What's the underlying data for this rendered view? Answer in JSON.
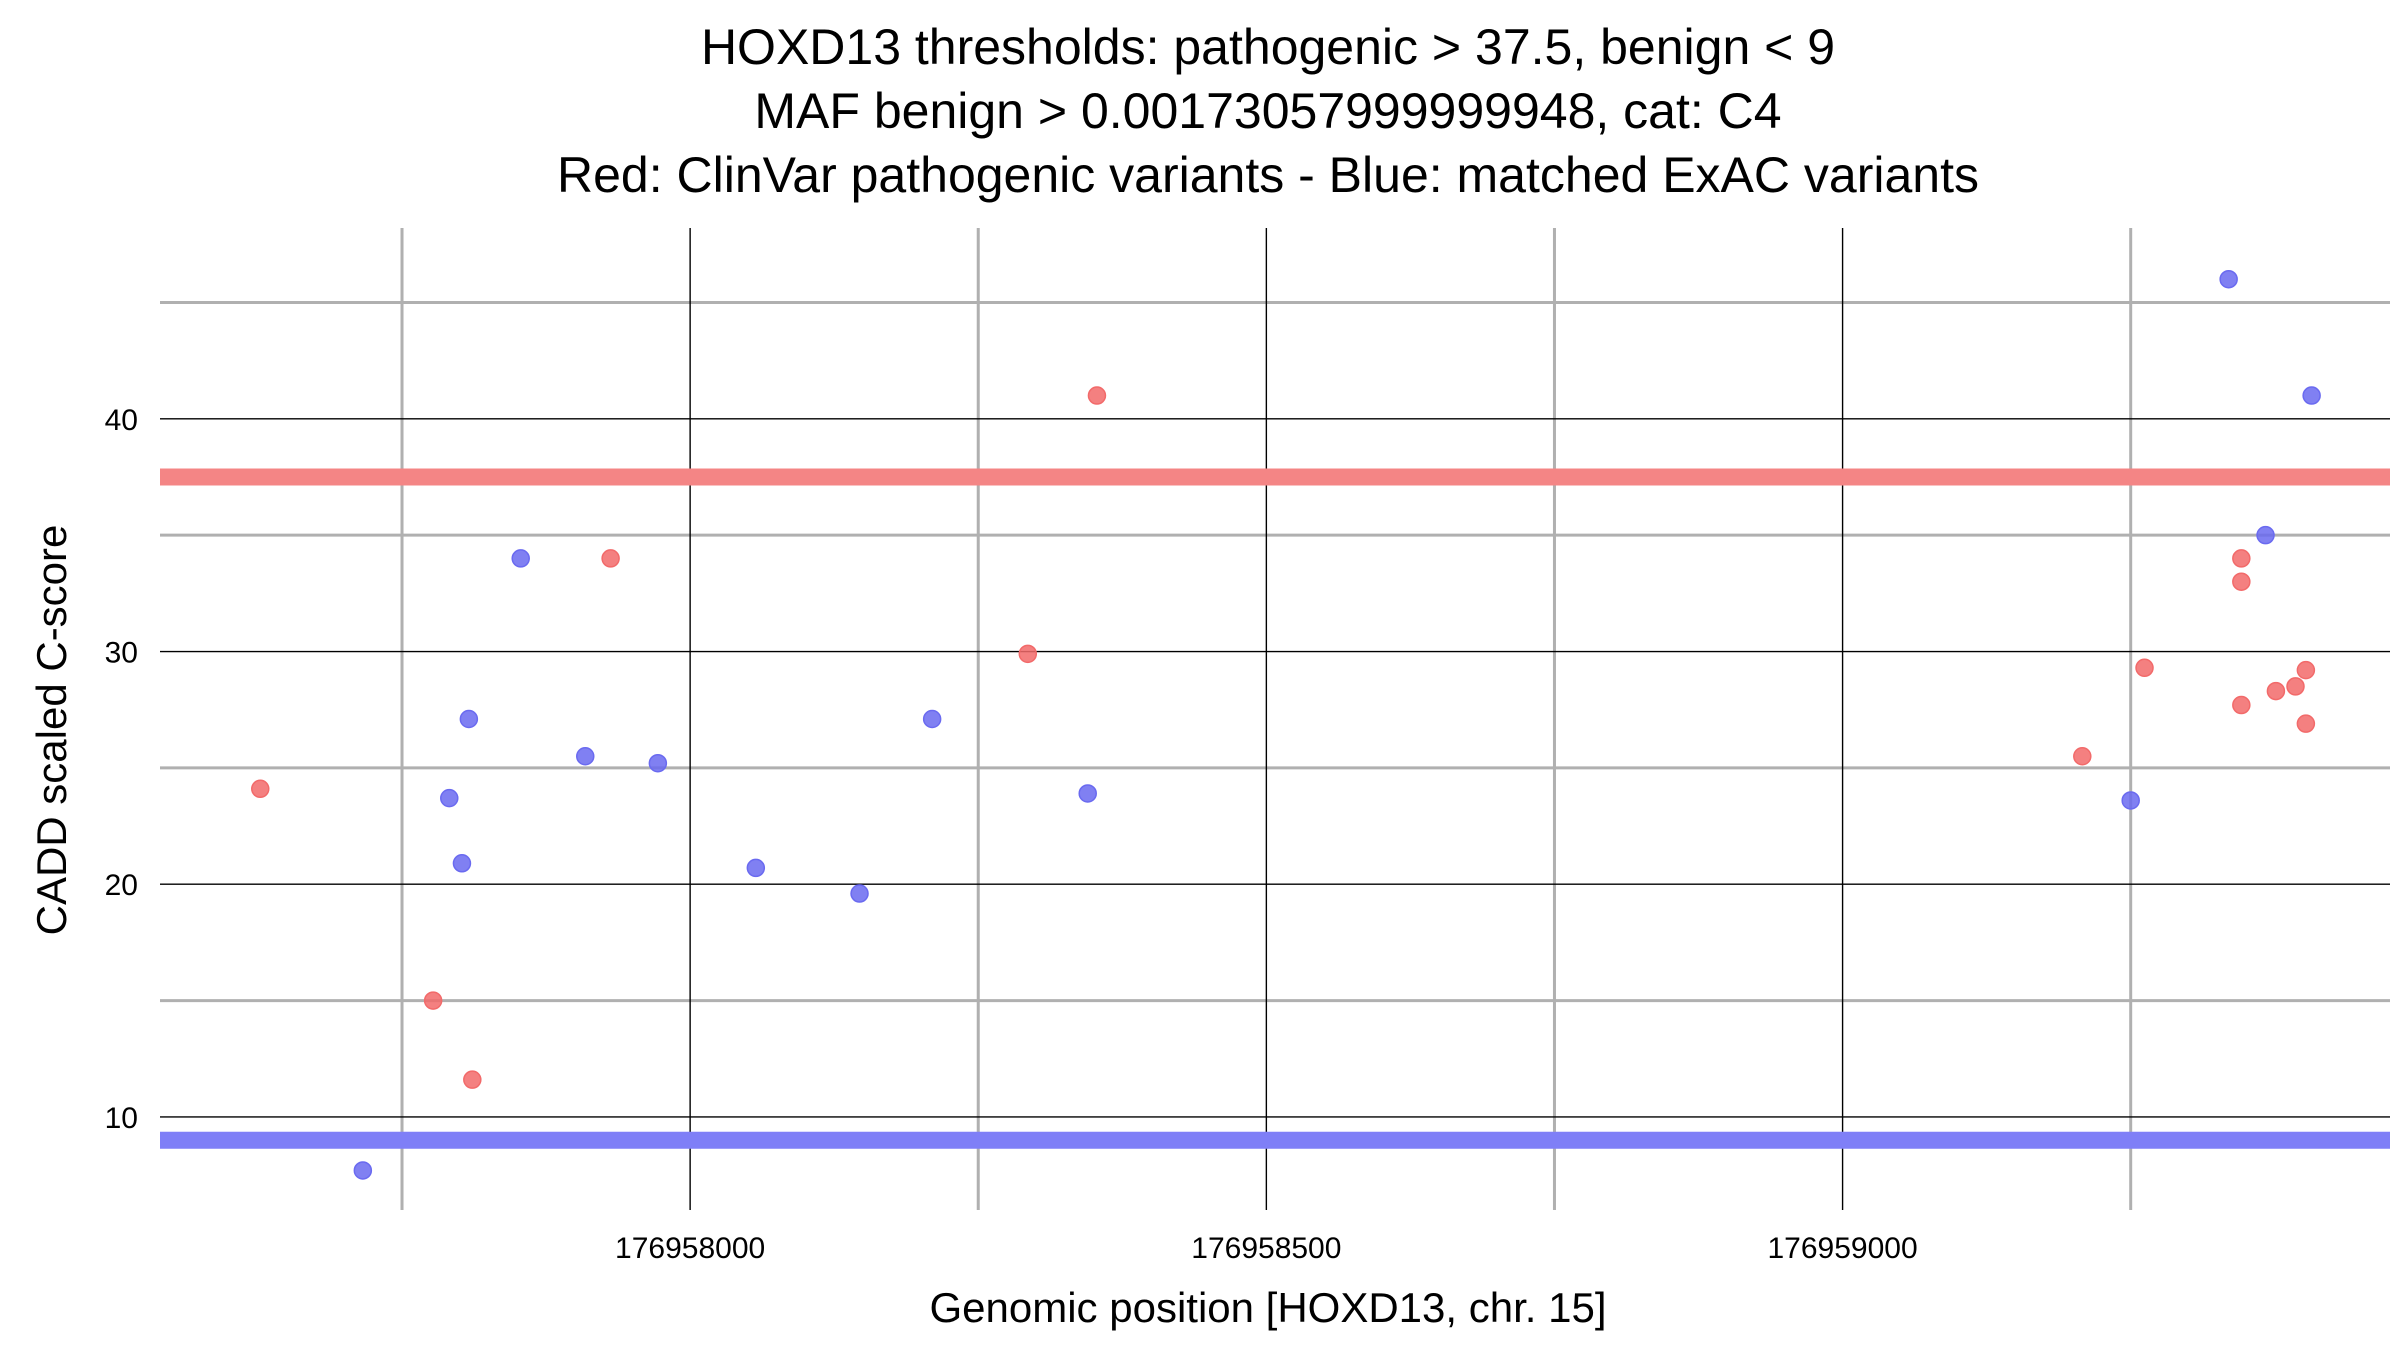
{
  "chart_data": {
    "type": "scatter",
    "title": [
      "HOXD13 thresholds: pathogenic > 37.5, benign < 9",
      "MAF benign > 0.00173057999999948, cat: C4",
      "Red: ClinVar pathogenic variants - Blue: matched ExAC variants"
    ],
    "xlabel": "Genomic position [HOXD13, chr. 15]",
    "ylabel": "CADD scaled C-score",
    "xlim": [
      176957540,
      176959475
    ],
    "ylim": [
      6,
      48.2
    ],
    "x_major_ticks": [
      176958000,
      176958500,
      176959000
    ],
    "x_major_tick_labels": [
      "176958000",
      "176958500",
      "176959000"
    ],
    "x_minor_ticks": [
      176957750,
      176958250,
      176958750,
      176959250
    ],
    "y_major_ticks": [
      10,
      20,
      30,
      40
    ],
    "y_major_tick_labels": [
      "10",
      "20",
      "30",
      "40"
    ],
    "y_minor_ticks": [
      15,
      25,
      35,
      45
    ],
    "grid": true,
    "thresholds": [
      {
        "name": "pathogenic",
        "y": 37.5,
        "color": "#f48585"
      },
      {
        "name": "benign",
        "y": 9,
        "color": "#7f7ff7"
      }
    ],
    "series": [
      {
        "color": "#f26a6a",
        "points": [
          {
            "x": 176957627,
            "y": 24.1
          },
          {
            "x": 176957777,
            "y": 15.0
          },
          {
            "x": 176957811,
            "y": 11.6
          },
          {
            "x": 176957931,
            "y": 34.0
          },
          {
            "x": 176958293,
            "y": 29.9
          },
          {
            "x": 176958353,
            "y": 41.0
          },
          {
            "x": 176959208,
            "y": 25.5
          },
          {
            "x": 176959262,
            "y": 29.3
          },
          {
            "x": 176959346,
            "y": 34.0
          },
          {
            "x": 176959346,
            "y": 33.0
          },
          {
            "x": 176959346,
            "y": 27.7
          },
          {
            "x": 176959376,
            "y": 28.3
          },
          {
            "x": 176959393,
            "y": 28.5
          },
          {
            "x": 176959402,
            "y": 29.2
          },
          {
            "x": 176959402,
            "y": 26.9
          }
        ]
      },
      {
        "color": "#6a6af0",
        "points": [
          {
            "x": 176957716,
            "y": 7.7
          },
          {
            "x": 176957791,
            "y": 23.7
          },
          {
            "x": 176957802,
            "y": 20.9
          },
          {
            "x": 176957808,
            "y": 27.1
          },
          {
            "x": 176957853,
            "y": 34.0
          },
          {
            "x": 176957909,
            "y": 25.5
          },
          {
            "x": 176957972,
            "y": 25.2
          },
          {
            "x": 176958057,
            "y": 20.7
          },
          {
            "x": 176958147,
            "y": 19.6
          },
          {
            "x": 176958210,
            "y": 27.1
          },
          {
            "x": 176958345,
            "y": 23.9
          },
          {
            "x": 176959250,
            "y": 23.6
          },
          {
            "x": 176959335,
            "y": 46.0
          },
          {
            "x": 176959367,
            "y": 35.0
          },
          {
            "x": 176959407,
            "y": 41.0
          }
        ]
      }
    ]
  }
}
